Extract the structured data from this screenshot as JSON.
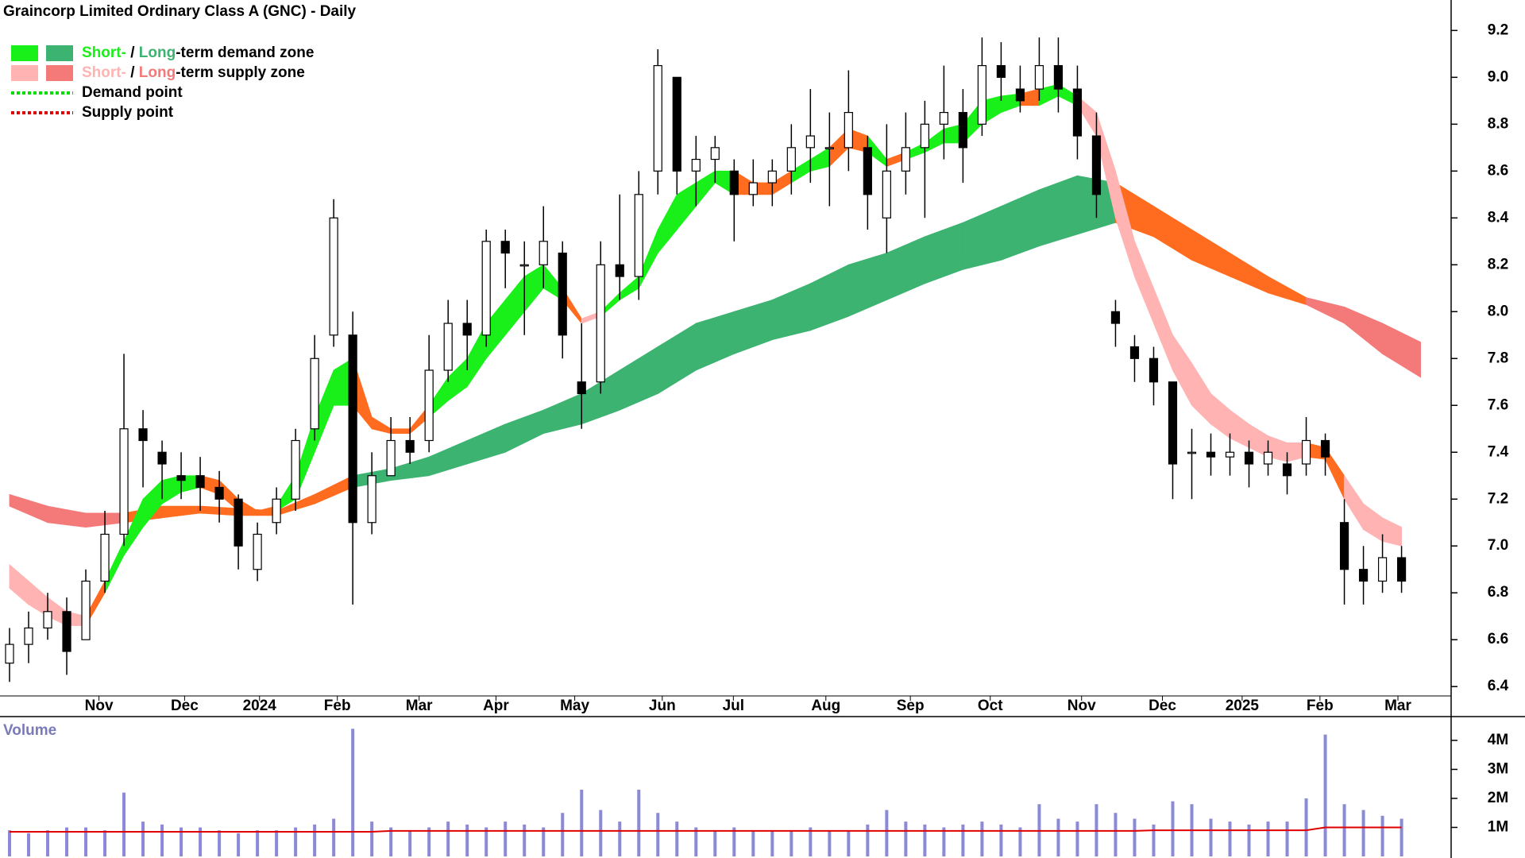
{
  "chart_data": [
    {
      "type": "candlestick",
      "title": "Graincorp Limited Ordinary Class A (GNC) - Daily",
      "legend": [
        {
          "parts": [
            "Short-",
            " / ",
            "Long",
            "-term demand zone"
          ],
          "part_colors": [
            "#19f019",
            "#000000",
            "#3cb371",
            "#000000"
          ],
          "swatches": [
            "#19f019",
            "#3cb371"
          ]
        },
        {
          "parts": [
            "Short-",
            " / ",
            "Long",
            "-term supply zone"
          ],
          "part_colors": [
            "#ffb3b3",
            "#000000",
            "#f47a7a",
            "#000000"
          ],
          "swatches": [
            "#ffb3b3",
            "#f47a7a"
          ]
        },
        {
          "parts": [
            "Demand point"
          ],
          "part_colors": [
            "#000000"
          ],
          "line": "#00dd00"
        },
        {
          "parts": [
            "Supply point"
          ],
          "part_colors": [
            "#000000"
          ],
          "line": "#dd0000"
        }
      ],
      "x": [
        0,
        1,
        2,
        3,
        4,
        5,
        6,
        7,
        8,
        9,
        10,
        11,
        12,
        13,
        14,
        15,
        16,
        17,
        18,
        19,
        20,
        21,
        22,
        23,
        24,
        25,
        26,
        27,
        28,
        29,
        30,
        31,
        32,
        33,
        34,
        35,
        36,
        37,
        38,
        39,
        40,
        41,
        42,
        43,
        44,
        45,
        46,
        47,
        48,
        49,
        50,
        51,
        52,
        53,
        54,
        55,
        56,
        57,
        58,
        59,
        60,
        61,
        62,
        63,
        64,
        65,
        66,
        67,
        68,
        69,
        70,
        71,
        72,
        73
      ],
      "open": [
        6.5,
        6.58,
        6.65,
        6.72,
        6.6,
        6.85,
        7.05,
        7.5,
        7.4,
        7.3,
        7.3,
        7.25,
        7.2,
        6.9,
        7.1,
        7.2,
        7.5,
        7.9,
        7.9,
        7.1,
        7.3,
        7.45,
        7.45,
        7.75,
        7.95,
        7.9,
        8.3,
        8.2,
        8.2,
        8.25,
        7.7,
        7.7,
        8.2,
        8.15,
        8.6,
        9.0,
        8.6,
        8.65,
        8.6,
        8.5,
        8.55,
        8.6,
        8.7,
        8.7,
        8.7,
        8.7,
        8.4,
        8.6,
        8.7,
        8.8,
        8.85,
        8.8,
        9.05,
        8.95,
        8.95,
        9.05,
        8.95,
        8.75,
        8.0,
        7.85,
        7.8,
        7.7,
        7.4,
        7.4,
        7.38,
        7.4,
        7.35,
        7.35,
        7.35,
        7.45,
        7.1,
        6.9,
        6.85,
        6.95
      ],
      "high": [
        6.65,
        6.72,
        6.8,
        6.78,
        6.9,
        7.15,
        7.82,
        7.58,
        7.45,
        7.4,
        7.38,
        7.32,
        7.22,
        7.1,
        7.25,
        7.5,
        7.9,
        8.48,
        8.0,
        7.4,
        7.55,
        7.55,
        7.9,
        8.05,
        8.05,
        8.35,
        8.35,
        8.3,
        8.45,
        8.3,
        7.95,
        8.3,
        8.5,
        8.6,
        9.12,
        9.0,
        8.75,
        8.75,
        8.65,
        8.65,
        8.65,
        8.8,
        8.95,
        8.85,
        9.03,
        8.75,
        8.8,
        8.85,
        8.9,
        9.05,
        8.95,
        9.17,
        9.15,
        9.05,
        9.17,
        9.17,
        9.05,
        8.85,
        8.05,
        7.9,
        7.85,
        7.7,
        7.5,
        7.48,
        7.48,
        7.45,
        7.45,
        7.4,
        7.55,
        7.48,
        7.2,
        7.0,
        7.05,
        7.0
      ],
      "low": [
        6.42,
        6.5,
        6.6,
        6.45,
        6.6,
        6.8,
        7.0,
        7.25,
        7.2,
        7.2,
        7.15,
        7.1,
        6.9,
        6.85,
        7.05,
        7.15,
        7.45,
        7.85,
        6.75,
        7.05,
        7.3,
        7.35,
        7.4,
        7.7,
        7.75,
        7.85,
        8.1,
        7.9,
        8.1,
        7.8,
        7.5,
        7.65,
        8.05,
        8.05,
        8.5,
        8.5,
        8.45,
        8.55,
        8.3,
        8.45,
        8.45,
        8.5,
        8.55,
        8.45,
        8.6,
        8.35,
        8.25,
        8.5,
        8.4,
        8.65,
        8.55,
        8.75,
        8.9,
        8.85,
        8.9,
        8.85,
        8.65,
        8.4,
        7.85,
        7.7,
        7.6,
        7.2,
        7.2,
        7.3,
        7.3,
        7.25,
        7.3,
        7.22,
        7.3,
        7.3,
        6.75,
        6.75,
        6.8,
        6.8
      ],
      "close": [
        6.58,
        6.65,
        6.72,
        6.55,
        6.85,
        7.05,
        7.5,
        7.45,
        7.35,
        7.28,
        7.25,
        7.2,
        7.0,
        7.05,
        7.2,
        7.45,
        7.8,
        8.4,
        7.1,
        7.3,
        7.45,
        7.4,
        7.75,
        7.95,
        7.9,
        8.3,
        8.25,
        8.2,
        8.3,
        7.9,
        7.65,
        8.2,
        8.15,
        8.5,
        9.05,
        8.6,
        8.65,
        8.7,
        8.5,
        8.55,
        8.6,
        8.7,
        8.75,
        8.7,
        8.85,
        8.5,
        8.6,
        8.7,
        8.8,
        8.85,
        8.7,
        9.05,
        9.0,
        8.9,
        9.05,
        8.95,
        8.75,
        8.5,
        7.95,
        7.8,
        7.7,
        7.35,
        7.4,
        7.38,
        7.4,
        7.35,
        7.4,
        7.3,
        7.45,
        7.38,
        6.9,
        6.85,
        6.95,
        6.85
      ],
      "short_zone": {
        "x": [
          0,
          1,
          2,
          3,
          4,
          5,
          6,
          7,
          8,
          9,
          10,
          11,
          12,
          13,
          14,
          15,
          16,
          17,
          18,
          19,
          20,
          21,
          22,
          23,
          24,
          25,
          26,
          27,
          28,
          29,
          30,
          31,
          32,
          33,
          34,
          35,
          36,
          37,
          38,
          39,
          40,
          41,
          42,
          43,
          44,
          45,
          46,
          47,
          48,
          49,
          50,
          51,
          52,
          53,
          54,
          55,
          56,
          57,
          58,
          59,
          60,
          61,
          62,
          63,
          64,
          65,
          66,
          67,
          68,
          69,
          70,
          71,
          72,
          73
        ],
        "upper": [
          6.92,
          6.85,
          6.78,
          6.72,
          6.7,
          6.85,
          7.02,
          7.2,
          7.28,
          7.3,
          7.3,
          7.28,
          7.2,
          7.15,
          7.17,
          7.3,
          7.55,
          7.75,
          7.8,
          7.55,
          7.5,
          7.5,
          7.6,
          7.72,
          7.8,
          7.95,
          8.05,
          8.15,
          8.2,
          8.1,
          7.97,
          8.0,
          8.08,
          8.15,
          8.35,
          8.5,
          8.55,
          8.6,
          8.6,
          8.55,
          8.55,
          8.6,
          8.65,
          8.7,
          8.78,
          8.75,
          8.65,
          8.68,
          8.72,
          8.78,
          8.8,
          8.9,
          8.92,
          8.93,
          8.95,
          8.97,
          8.92,
          8.85,
          8.6,
          8.3,
          8.1,
          7.9,
          7.78,
          7.65,
          7.58,
          7.52,
          7.47,
          7.44,
          7.44,
          7.42,
          7.3,
          7.18,
          7.12,
          7.08
        ],
        "lower": [
          6.82,
          6.75,
          6.7,
          6.66,
          6.66,
          6.8,
          6.96,
          7.08,
          7.18,
          7.23,
          7.25,
          7.22,
          7.15,
          7.13,
          7.15,
          7.2,
          7.4,
          7.6,
          7.6,
          7.5,
          7.48,
          7.48,
          7.55,
          7.62,
          7.68,
          7.8,
          7.9,
          8.0,
          8.1,
          8.05,
          7.95,
          7.98,
          8.05,
          8.1,
          8.25,
          8.35,
          8.45,
          8.55,
          8.5,
          8.5,
          8.5,
          8.55,
          8.6,
          8.62,
          8.7,
          8.68,
          8.62,
          8.65,
          8.68,
          8.72,
          8.72,
          8.8,
          8.85,
          8.88,
          8.88,
          8.92,
          8.88,
          8.75,
          8.4,
          8.15,
          7.95,
          7.75,
          7.6,
          7.52,
          7.46,
          7.42,
          7.38,
          7.36,
          7.38,
          7.37,
          7.2,
          7.07,
          7.02,
          7.0
        ],
        "colors": [
          "#ffb3b3",
          "#ffb3b3",
          "#ffb3b3",
          "#ffb3b3",
          "#ff6c1f",
          "#19f019",
          "#19f019",
          "#19f019",
          "#19f019",
          "#19f019",
          "#ff6c1f",
          "#ff6c1f",
          "#ff6c1f",
          "#ff6c1f",
          "#19f019",
          "#19f019",
          "#19f019",
          "#19f019",
          "#ff6c1f",
          "#ff6c1f",
          "#ff6c1f",
          "#ff6c1f",
          "#19f019",
          "#19f019",
          "#19f019",
          "#19f019",
          "#19f019",
          "#19f019",
          "#19f019",
          "#ff6c1f",
          "#ffb3b3",
          "#19f019",
          "#19f019",
          "#19f019",
          "#19f019",
          "#19f019",
          "#19f019",
          "#19f019",
          "#ff6c1f",
          "#ff6c1f",
          "#ff6c1f",
          "#19f019",
          "#19f019",
          "#ff6c1f",
          "#ff6c1f",
          "#19f019",
          "#ff6c1f",
          "#19f019",
          "#19f019",
          "#19f019",
          "#19f019",
          "#19f019",
          "#19f019",
          "#ff6c1f",
          "#19f019",
          "#19f019",
          "#ffb3b3",
          "#ffb3b3",
          "#ffb3b3",
          "#ffb3b3",
          "#ffb3b3",
          "#ffb3b3",
          "#ffb3b3",
          "#ffb3b3",
          "#ffb3b3",
          "#ffb3b3",
          "#ffb3b3",
          "#ffb3b3",
          "#ff6c1f",
          "#ff6c1f",
          "#ffb3b3",
          "#ffb3b3",
          "#ffb3b3",
          "#ffb3b3"
        ]
      },
      "long_zone": {
        "x": [
          0,
          2,
          4,
          6,
          8,
          10,
          12,
          14,
          16,
          18,
          20,
          22,
          24,
          26,
          28,
          30,
          32,
          34,
          36,
          38,
          40,
          42,
          44,
          46,
          48,
          50,
          52,
          54,
          56,
          58,
          60,
          62,
          64,
          66,
          68,
          70,
          72,
          74
        ],
        "upper": [
          7.22,
          7.17,
          7.14,
          7.14,
          7.17,
          7.17,
          7.16,
          7.15,
          7.22,
          7.3,
          7.33,
          7.38,
          7.45,
          7.52,
          7.58,
          7.65,
          7.75,
          7.85,
          7.95,
          8.0,
          8.05,
          8.12,
          8.2,
          8.25,
          8.32,
          8.38,
          8.45,
          8.52,
          8.58,
          8.55,
          8.45,
          8.35,
          8.25,
          8.15,
          8.06,
          8.02,
          7.95,
          7.87
        ],
        "lower": [
          7.17,
          7.1,
          7.08,
          7.1,
          7.12,
          7.14,
          7.13,
          7.13,
          7.18,
          7.25,
          7.28,
          7.3,
          7.35,
          7.4,
          7.48,
          7.52,
          7.58,
          7.65,
          7.75,
          7.82,
          7.88,
          7.92,
          7.98,
          8.05,
          8.12,
          8.18,
          8.22,
          8.28,
          8.33,
          8.38,
          8.32,
          8.22,
          8.15,
          8.08,
          8.03,
          7.95,
          7.82,
          7.72
        ],
        "colors": [
          "#f47a7a",
          "#f47a7a",
          "#f47a7a",
          "#ff6c1f",
          "#ff6c1f",
          "#ff6c1f",
          "#ff6c1f",
          "#ff6c1f",
          "#ff6c1f",
          "#3cb371",
          "#3cb371",
          "#3cb371",
          "#3cb371",
          "#3cb371",
          "#3cb371",
          "#3cb371",
          "#3cb371",
          "#3cb371",
          "#3cb371",
          "#3cb371",
          "#3cb371",
          "#3cb371",
          "#3cb371",
          "#3cb371",
          "#3cb371",
          "#3cb371",
          "#3cb371",
          "#3cb371",
          "#3cb371",
          "#ff6c1f",
          "#ff6c1f",
          "#ff6c1f",
          "#ff6c1f",
          "#ff6c1f",
          "#f47a7a",
          "#f47a7a",
          "#f47a7a",
          "#f47a7a"
        ]
      },
      "xlim": [
        -0.5,
        75.6
      ],
      "xticks": [
        {
          "value": 4.69,
          "label": "Nov"
        },
        {
          "value": 9.18,
          "label": "Dec"
        },
        {
          "value": 13.11,
          "label": "2024"
        },
        {
          "value": 17.19,
          "label": "Feb"
        },
        {
          "value": 21.48,
          "label": "Mar"
        },
        {
          "value": 25.51,
          "label": "Apr"
        },
        {
          "value": 29.64,
          "label": "May"
        },
        {
          "value": 34.23,
          "label": "Jun"
        },
        {
          "value": 37.96,
          "label": "Jul"
        },
        {
          "value": 42.81,
          "label": "Aug"
        },
        {
          "value": 47.24,
          "label": "Sep"
        },
        {
          "value": 51.43,
          "label": "Oct"
        },
        {
          "value": 56.22,
          "label": "Nov"
        },
        {
          "value": 60.46,
          "label": "Dec"
        },
        {
          "value": 64.64,
          "label": "2025"
        },
        {
          "value": 68.72,
          "label": "Feb"
        },
        {
          "value": 72.81,
          "label": "Mar"
        }
      ],
      "ylim": [
        6.36,
        9.33
      ],
      "yticks": [
        6.4,
        6.6,
        6.8,
        {
          "value": 7,
          "label": "7.0"
        },
        7.2,
        7.4,
        7.6,
        7.8,
        {
          "value": 8,
          "label": "8.0"
        },
        8.2,
        8.4,
        8.6,
        8.8,
        {
          "value": 9,
          "label": "9.0"
        },
        9.2
      ],
      "up_color": "#ffffff",
      "down_color": "#000000"
    },
    {
      "type": "bar",
      "title": "Volume",
      "x": [
        0,
        1,
        2,
        3,
        4,
        5,
        6,
        7,
        8,
        9,
        10,
        11,
        12,
        13,
        14,
        15,
        16,
        17,
        18,
        19,
        20,
        21,
        22,
        23,
        24,
        25,
        26,
        27,
        28,
        29,
        30,
        31,
        32,
        33,
        34,
        35,
        36,
        37,
        38,
        39,
        40,
        41,
        42,
        43,
        44,
        45,
        46,
        47,
        48,
        49,
        50,
        51,
        52,
        53,
        54,
        55,
        56,
        57,
        58,
        59,
        60,
        61,
        62,
        63,
        64,
        65,
        66,
        67,
        68,
        69,
        70,
        71,
        72,
        73
      ],
      "values": [
        900000,
        800000,
        900000,
        1000000,
        1000000,
        900000,
        2200000,
        1200000,
        1100000,
        1000000,
        1000000,
        900000,
        800000,
        900000,
        900000,
        1000000,
        1100000,
        1300000,
        4400000,
        1200000,
        1000000,
        900000,
        1000000,
        1200000,
        1100000,
        1000000,
        1200000,
        1100000,
        1000000,
        1500000,
        2300000,
        1600000,
        1200000,
        2300000,
        1500000,
        1200000,
        1000000,
        900000,
        1000000,
        900000,
        900000,
        900000,
        1000000,
        900000,
        900000,
        1100000,
        1600000,
        1200000,
        1100000,
        1000000,
        1100000,
        1200000,
        1100000,
        1000000,
        1800000,
        1300000,
        1200000,
        1800000,
        1500000,
        1300000,
        1100000,
        1900000,
        1800000,
        1300000,
        1200000,
        1100000,
        1200000,
        1200000,
        2000000,
        4200000,
        1800000,
        1600000,
        1400000,
        1300000
      ],
      "average": [
        850000,
        850000,
        850000,
        850000,
        850000,
        850000,
        850000,
        850000,
        850000,
        850000,
        850000,
        850000,
        850000,
        850000,
        850000,
        850000,
        850000,
        850000,
        850000,
        850000,
        880000,
        880000,
        880000,
        880000,
        880000,
        880000,
        880000,
        880000,
        880000,
        880000,
        880000,
        880000,
        880000,
        880000,
        880000,
        880000,
        880000,
        880000,
        880000,
        880000,
        880000,
        880000,
        880000,
        880000,
        880000,
        880000,
        880000,
        880000,
        880000,
        880000,
        880000,
        880000,
        880000,
        880000,
        880000,
        880000,
        880000,
        880000,
        880000,
        880000,
        900000,
        900000,
        900000,
        900000,
        900000,
        900000,
        900000,
        900000,
        900000,
        1000000,
        1000000,
        1000000,
        1000000,
        1000000
      ],
      "color": "#8a8ad8",
      "average_color": "#e00000",
      "xlim": [
        -0.5,
        75.6
      ],
      "ylim": [
        0,
        4820000
      ],
      "yticks": [
        {
          "value": 1000000,
          "label": "1M"
        },
        {
          "value": 2000000,
          "label": "2M"
        },
        {
          "value": 3000000,
          "label": "3M"
        },
        {
          "value": 4000000,
          "label": "4M"
        }
      ]
    }
  ]
}
